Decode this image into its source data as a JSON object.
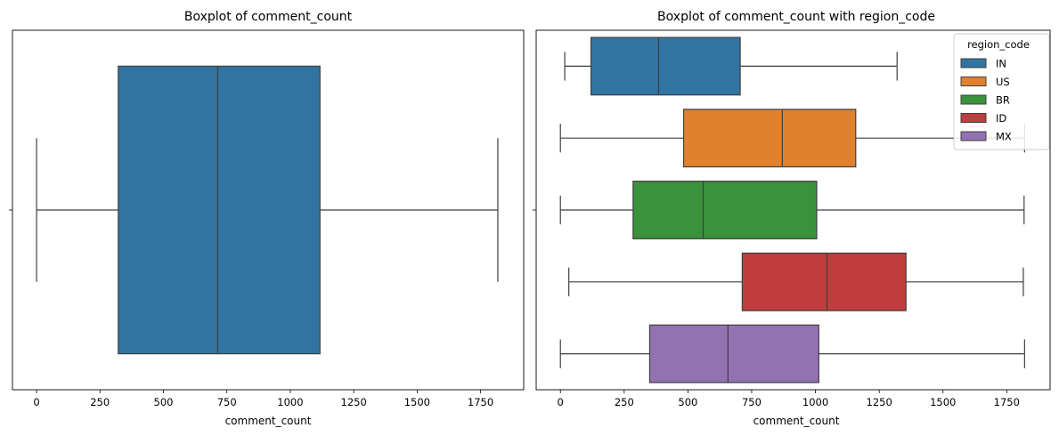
{
  "chart_data": [
    {
      "type": "boxplot",
      "title": "Boxplot of comment_count",
      "xlabel": "comment_count",
      "ylabel": "",
      "xlim": [
        -95,
        1920
      ],
      "xticks": [
        0,
        250,
        500,
        750,
        1000,
        1250,
        1500,
        1750
      ],
      "grid": false,
      "series": [
        {
          "min": 0,
          "q1": 322,
          "median": 714,
          "q3": 1117,
          "max": 1818,
          "color": "#3274a1"
        }
      ]
    },
    {
      "type": "boxplot",
      "title": "Boxplot of comment_count with region_code",
      "xlabel": "comment_count",
      "ylabel": "",
      "xlim": [
        -95,
        1920
      ],
      "xticks": [
        0,
        250,
        500,
        750,
        1000,
        1250,
        1500,
        1750
      ],
      "grid": false,
      "legend": {
        "title": "region_code",
        "placement": "top-right"
      },
      "series": [
        {
          "name": "IN",
          "min": 17,
          "q1": 120,
          "median": 385,
          "q3": 705,
          "max": 1320,
          "color": "#3274a1"
        },
        {
          "name": "US",
          "min": 0,
          "q1": 483,
          "median": 870,
          "q3": 1158,
          "max": 1820,
          "color": "#e1812c"
        },
        {
          "name": "BR",
          "min": 0,
          "q1": 285,
          "median": 560,
          "q3": 1005,
          "max": 1818,
          "color": "#3a923a"
        },
        {
          "name": "ID",
          "min": 33,
          "q1": 713,
          "median": 1045,
          "q3": 1355,
          "max": 1815,
          "color": "#c03d3e"
        },
        {
          "name": "MX",
          "min": 0,
          "q1": 350,
          "median": 657,
          "q3": 1013,
          "max": 1820,
          "color": "#9372b2"
        }
      ]
    }
  ]
}
